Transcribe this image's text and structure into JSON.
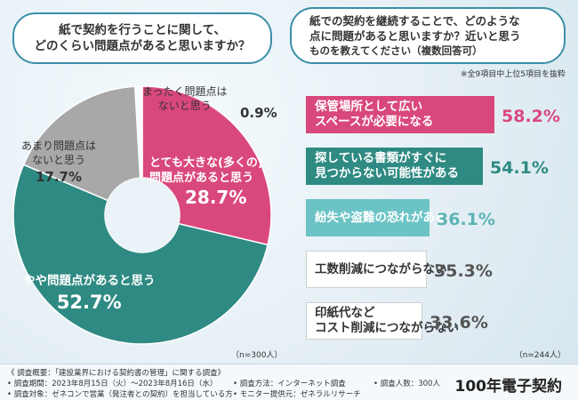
{
  "left_question": [
    "紙で契約を行うことに関して、",
    "どのくらい問題点があると思いますか？"
  ],
  "right_question": [
    "紙での契約を継続することで、どのような",
    "点に問題があると思いますか？近いと思う",
    "ものを教えてください（複数回答可）"
  ],
  "note": "※全9項目中上位5項目を抜粋",
  "pie_n": "（n=300人）",
  "bar_n": "（n=244人）",
  "colors": {
    "pink": "#d9487c",
    "teal": "#2e8a82",
    "lightteal": "#6cc3c5",
    "gray": "#a8a8a8",
    "white": "#ffffff"
  },
  "chart_data": [
    {
      "type": "pie",
      "title": "紙で契約を行うことに関して、どのくらい問題点があると思いますか？",
      "n": 300,
      "categories": [
        "とても大きな(多くの)問題点があると思う",
        "やや問題点があると思う",
        "あまり問題点はないと思う",
        "まったく問題点はないと思う"
      ],
      "values": [
        28.7,
        52.7,
        17.7,
        0.9
      ],
      "labels": [
        {
          "lines": [
            "とても大きな(多くの)",
            "問題点があると思う"
          ],
          "value": "28.7%"
        },
        {
          "lines": [
            "やや問題点があると思う"
          ],
          "value": "52.7%"
        },
        {
          "lines": [
            "あまり問題点は",
            "ないと思う"
          ],
          "value": "17.7%"
        },
        {
          "lines": [
            "まったく問題点は",
            "ないと思う"
          ],
          "value": "0.9%"
        }
      ]
    },
    {
      "type": "bar",
      "title": "紙での契約を継続することで、どのような点に問題があると思いますか？近いと思うものを教えてください（複数回答可）",
      "n": 244,
      "categories": [
        "保管場所として広いスペースが必要になる",
        "探している書類がすぐに見つからない可能性がある",
        "紛失や盗難の恐れがある",
        "工数削減につながらない",
        "印紙代などコスト削減につながらない"
      ],
      "values": [
        58.2,
        54.1,
        36.1,
        35.3,
        33.6
      ],
      "xlim": [
        0,
        100
      ],
      "labels": [
        {
          "lines": [
            "保管場所として広い",
            "スペースが必要になる"
          ],
          "value": "58.2%"
        },
        {
          "lines": [
            "探している書類がすぐに",
            "見つからない可能性がある"
          ],
          "value": "54.1%"
        },
        {
          "lines": [
            "紛失や盗難の恐れがある"
          ],
          "value": "36.1%"
        },
        {
          "lines": [
            "工数削減につながらない"
          ],
          "value": "35.3%"
        },
        {
          "lines": [
            "印紙代など",
            "コスト削減につながらない"
          ],
          "value": "33.6%"
        }
      ]
    }
  ],
  "footer": {
    "overview": "《 調査概要：「建設業界における契約書の管理」に関する調査》",
    "period": "• 調査期間：2023年8月15日（火）〜2023年8月16日（水）",
    "method": "• 調査方法：インターネット調査",
    "people": "• 調査人数：300人",
    "target": "• 調査対象：ゼネコンで営業（発注者との契約）を担当している方",
    "monitor": "• モニター提供元：ゼネラルリサーチ",
    "logo": "100年電子契約"
  }
}
